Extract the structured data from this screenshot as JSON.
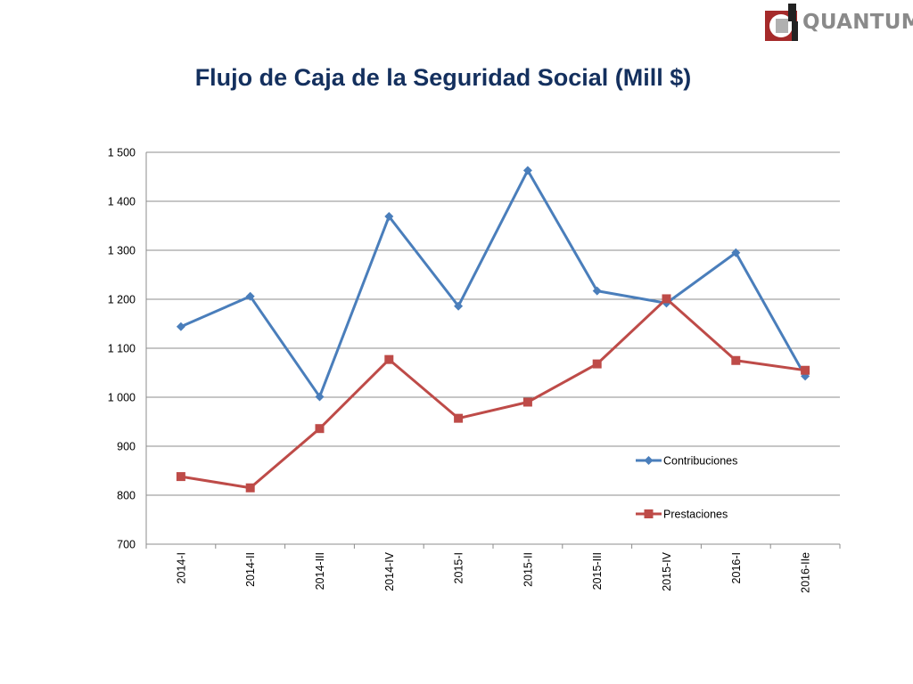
{
  "logo": {
    "text": "QUANTUM"
  },
  "chart_data": {
    "type": "line",
    "title": "Flujo de Caja de la Seguridad Social (Mill $)",
    "categories": [
      "2014-I",
      "2014-II",
      "2014-III",
      "2014-IV",
      "2015-I",
      "2015-II",
      "2015-III",
      "2015-IV",
      "2016-I",
      "2016-IIe"
    ],
    "ylim": [
      700,
      1500
    ],
    "yticks": [
      700,
      800,
      900,
      1000,
      1100,
      1200,
      1300,
      1400,
      1500
    ],
    "ytick_labels": [
      "700",
      "800",
      "900",
      "1 000",
      "1 100",
      "1 200",
      "1 300",
      "1 400",
      "1 500"
    ],
    "grid": true,
    "legend_position": "right",
    "series": [
      {
        "name": "Contribuciones",
        "color": "#4a7ebb",
        "marker": "diamond",
        "values": [
          1144,
          1206,
          1001,
          1369,
          1186,
          1463,
          1217,
          1192,
          1295,
          1043
        ]
      },
      {
        "name": "Prestaciones",
        "color": "#be4b48",
        "marker": "square",
        "values": [
          838,
          815,
          936,
          1077,
          957,
          990,
          1068,
          1201,
          1075,
          1055
        ]
      }
    ]
  }
}
